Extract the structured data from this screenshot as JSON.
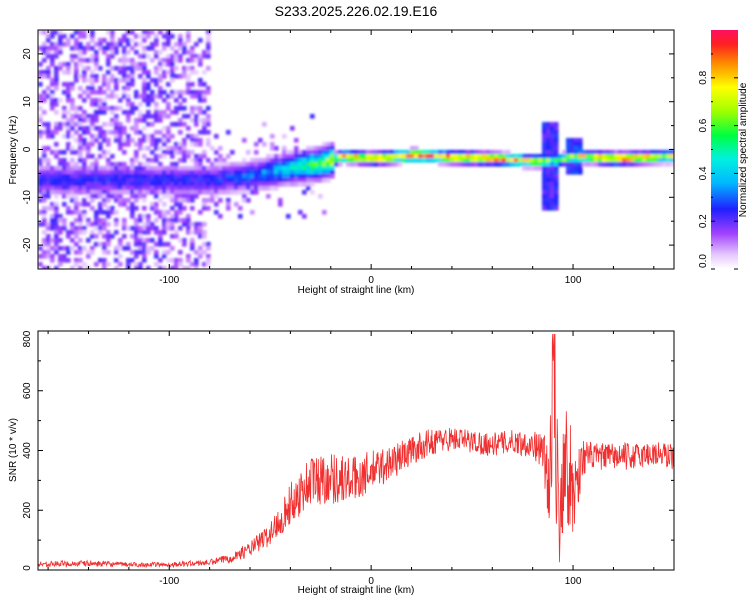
{
  "title": "S233.2025.226.02.19.E16",
  "chart_data": [
    {
      "type": "heatmap",
      "xlabel": "Height of straight line (km)",
      "ylabel": "Frequency (Hz)",
      "xlim": [
        -165,
        150
      ],
      "ylim": [
        -25,
        25
      ],
      "xticks": [
        -100,
        0,
        100
      ],
      "yticks": [
        -20,
        -10,
        0,
        10,
        20
      ],
      "colorbar": {
        "label": "Normalized spectral amplitude",
        "range": [
          0.0,
          1.0
        ],
        "ticks": [
          "0.0",
          "0.2",
          "0.4",
          "0.6",
          "0.8"
        ],
        "tick_values": [
          0.0,
          0.2,
          0.4,
          0.6,
          0.8
        ]
      },
      "ridge": {
        "x": [
          -80,
          -60,
          -40,
          -25,
          -15,
          0,
          20,
          40,
          60,
          80,
          90,
          100,
          120,
          150
        ],
        "freq": [
          -6,
          -5,
          -3.5,
          -2.5,
          -1,
          -1.5,
          -0.8,
          -1.2,
          -1.5,
          -2,
          -2,
          -1,
          -1.5,
          -1
        ],
        "amplitude": [
          0.25,
          0.3,
          0.45,
          0.6,
          0.8,
          0.85,
          0.95,
          0.9,
          0.9,
          0.8,
          0.6,
          0.75,
          0.95,
          0.7
        ]
      }
    },
    {
      "type": "line",
      "xlabel": "Height of straight line (km)",
      "ylabel": "SNR (10 * v/v)",
      "xlim": [
        -165,
        150
      ],
      "ylim": [
        0,
        800
      ],
      "xticks": [
        -100,
        0,
        100
      ],
      "yticks": [
        0,
        200,
        400,
        600,
        800
      ],
      "series": [
        {
          "name": "SNR",
          "color": "#f03030",
          "x": [
            -165,
            -140,
            -120,
            -100,
            -80,
            -70,
            -60,
            -50,
            -40,
            -30,
            -20,
            -10,
            0,
            10,
            20,
            30,
            40,
            50,
            60,
            70,
            80,
            85,
            88,
            90,
            93,
            96,
            100,
            105,
            110,
            120,
            130,
            140,
            150
          ],
          "y": [
            20,
            22,
            18,
            18,
            25,
            40,
            70,
            120,
            220,
            300,
            310,
            300,
            330,
            360,
            400,
            430,
            440,
            430,
            420,
            430,
            420,
            400,
            250,
            600,
            200,
            400,
            250,
            380,
            380,
            380,
            380,
            390,
            380
          ],
          "spread": [
            10,
            10,
            8,
            8,
            10,
            15,
            25,
            40,
            70,
            90,
            90,
            80,
            70,
            60,
            50,
            45,
            40,
            40,
            40,
            40,
            45,
            60,
            200,
            220,
            220,
            200,
            180,
            60,
            45,
            45,
            45,
            45,
            45
          ]
        }
      ]
    }
  ]
}
